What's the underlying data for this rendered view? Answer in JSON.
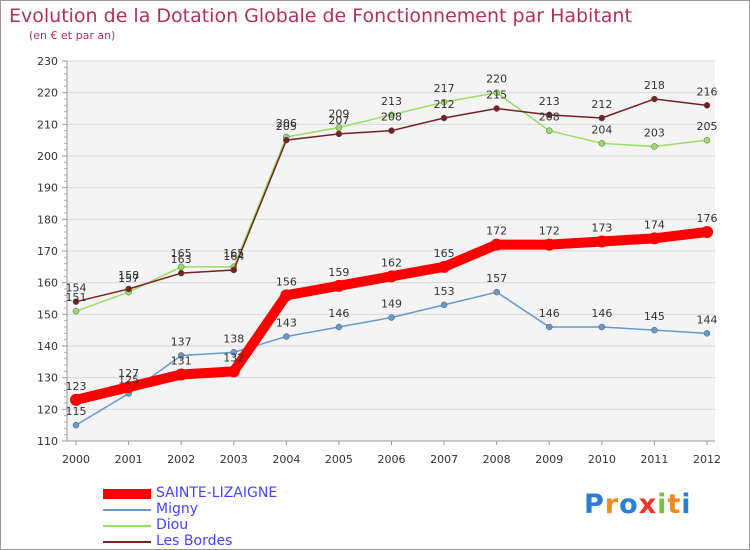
{
  "title": "Evolution de la Dotation Globale de Fonctionnement par Habitant",
  "subtitle": "(en € et par an)",
  "logo": "Proxiti",
  "chart_data": {
    "type": "line",
    "title": "Evolution de la Dotation Globale de Fonctionnement par Habitant",
    "ylabel": "(en € et par an)",
    "xlabel": "",
    "ylim": [
      110,
      230
    ],
    "yticks": [
      110,
      120,
      130,
      140,
      150,
      160,
      170,
      180,
      190,
      200,
      210,
      220,
      230
    ],
    "grid": "horizontal",
    "categories": [
      "2000",
      "2001",
      "2002",
      "2003",
      "2004",
      "2005",
      "2006",
      "2007",
      "2008",
      "2009",
      "2010",
      "2011",
      "2012"
    ],
    "series": [
      {
        "name": "SAINTE-LIZAIGNE",
        "color": "#ff0000",
        "values": [
          123,
          127,
          131,
          132,
          156,
          159,
          162,
          165,
          172,
          172,
          173,
          174,
          176
        ]
      },
      {
        "name": "Migny",
        "color": "#6699cc",
        "values": [
          115,
          125,
          137,
          138,
          143,
          146,
          149,
          153,
          157,
          146,
          146,
          145,
          144
        ]
      },
      {
        "name": "Diou",
        "color": "#99dd66",
        "values": [
          151,
          157,
          165,
          165,
          206,
          209,
          213,
          217,
          220,
          208,
          204,
          203,
          205
        ]
      },
      {
        "name": "Les Bordes",
        "color": "#772222",
        "values": [
          154,
          158,
          163,
          164,
          205,
          207,
          208,
          212,
          215,
          213,
          212,
          218,
          216
        ]
      }
    ]
  }
}
